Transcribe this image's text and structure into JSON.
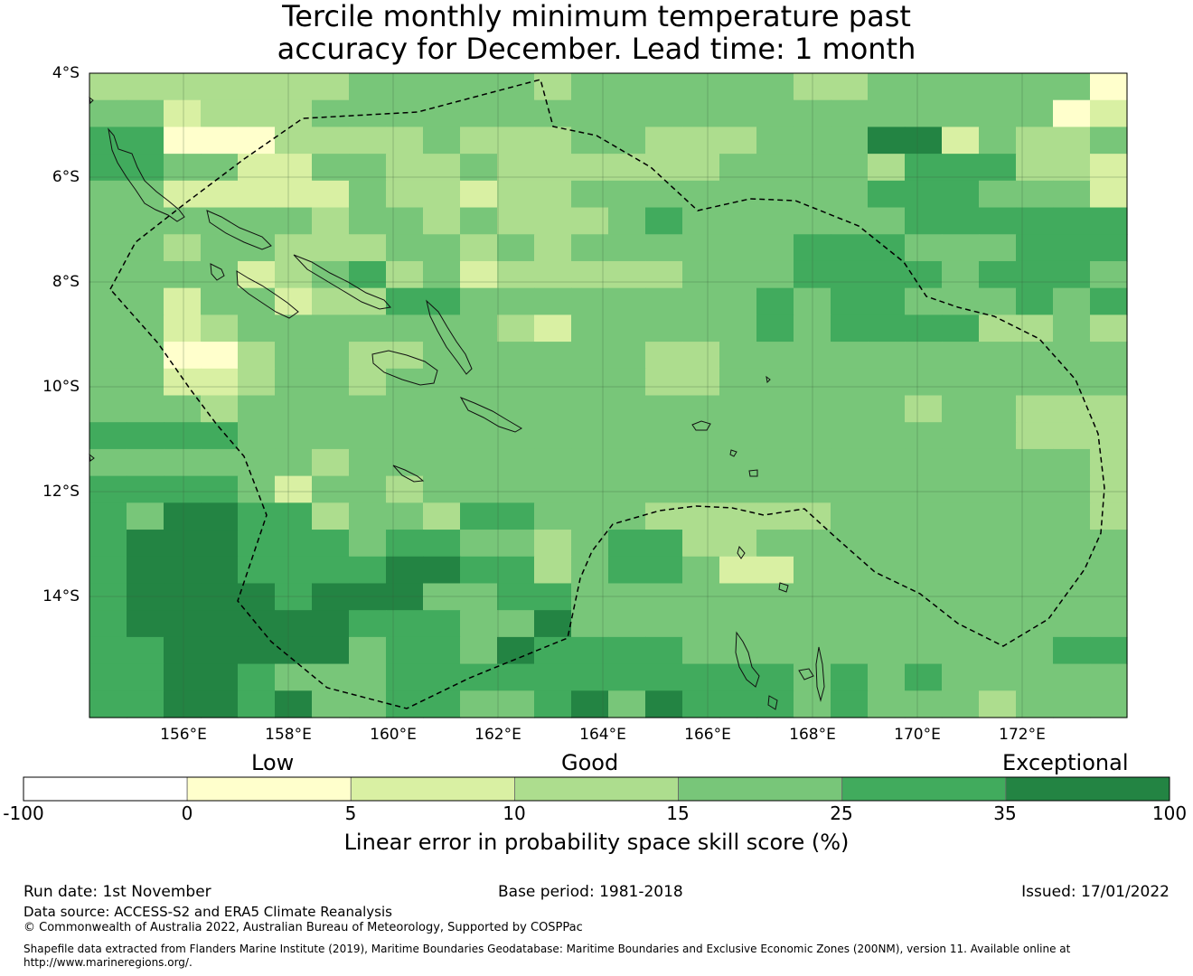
{
  "title": {
    "line1": "Tercile monthly minimum temperature past",
    "line2": "accuracy for December. Lead time: 1 month"
  },
  "map": {
    "lat_labels": [
      "4°S",
      "6°S",
      "8°S",
      "10°S",
      "12°S",
      "14°S"
    ],
    "lon_labels": [
      "156°E",
      "158°E",
      "160°E",
      "162°E",
      "164°E",
      "166°E",
      "168°E",
      "170°E",
      "172°E"
    ],
    "grid_rows": [
      "3333333444443444444334444441",
      "4423334444444444444444444412",
      "5511133334333443334446624334",
      "5544224433433333344443555332",
      "4422222433233444444445554442",
      "4444443443433345444444555555",
      "4434433344343444444555444555",
      "4444234534233333444555545554",
      "4424423355444444445455444545",
      "4423444444432444445455553343",
      "4411344334444443344444444444",
      "4422344344444443344444444444",
      "4443444444444444444444344333",
      "5555444444444444444444444333",
      "4444443444444444444444444443",
      "5555424434444444444444444443",
      "5466553443554443333344444443",
      "5666555455443455334444444444",
      "5666555566553455422444444444",
      "5666656664455444444444444444",
      "5666666555446444444444444444",
      "5566666455465555444444444455",
      "5566544455555555555454544444",
      "5566564455445646555454443444"
    ],
    "colors": [
      "#ffffff",
      "#ffffcc",
      "#d9f0a3",
      "#addd8e",
      "#78c679",
      "#41ab5d",
      "#238443"
    ]
  },
  "colorbar": {
    "categories": [
      "Low",
      "Good",
      "Exceptional"
    ],
    "ticks": [
      "-100",
      "0",
      "5",
      "10",
      "15",
      "25",
      "35",
      "100"
    ],
    "label": "Linear error in probability space skill score (%)"
  },
  "footer": {
    "run_date": "Run date: 1st November",
    "base_period": "Base period: 1981-2018",
    "issued": "Issued: 17/01/2022",
    "data_source": "Data source: ACCESS-S2 and ERA5 Climate Reanalysis",
    "copyright": "© Commonwealth of Australia 2022, Australian Bureau of Meteorology, Supported by COSPPac",
    "shapefile_line1": "Shapefile data extracted from Flanders Marine Institute (2019), Maritime Boundaries Geodatabase: Maritime Boundaries and Exclusive Economic Zones (200NM), version 11. Available online at",
    "shapefile_line2": "http://www.marineregions.org/."
  }
}
